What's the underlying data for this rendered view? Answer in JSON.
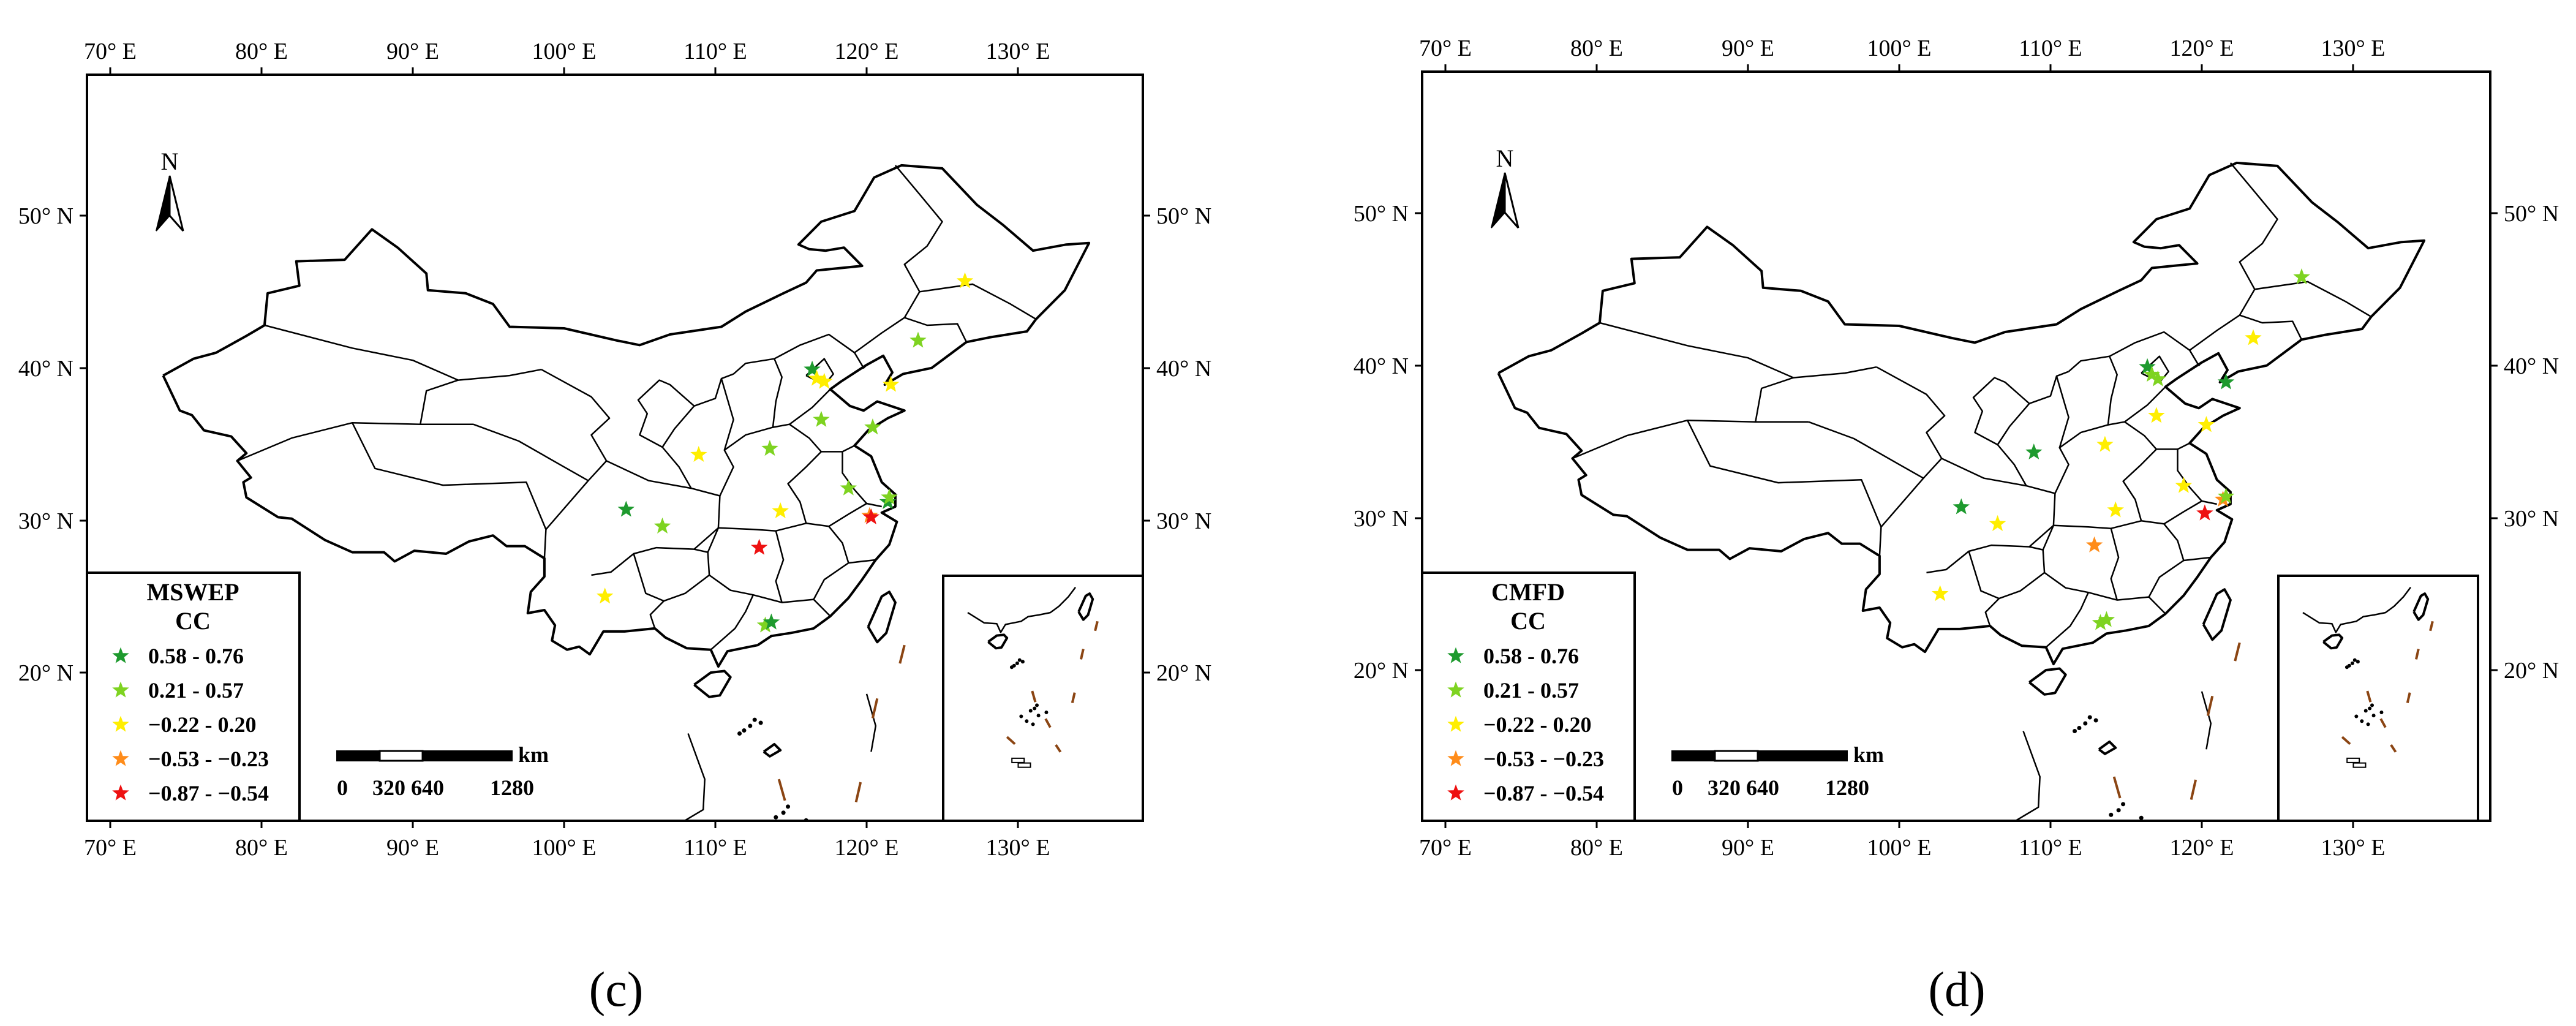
{
  "colors": {
    "dark_green": "#1e9a2e",
    "light_green": "#7ed321",
    "yellow": "#ffee00",
    "orange": "#ff8c1a",
    "red": "#ee1111",
    "nine_dash": "#8B4513"
  },
  "axes": {
    "lon_ticks": [
      "70° E",
      "80° E",
      "90° E",
      "100° E",
      "110° E",
      "120° E",
      "130° E"
    ],
    "lat_ticks": [
      "20° N",
      "30° N",
      "40° N",
      "50° N"
    ]
  },
  "north_label": "N",
  "scale_bar": {
    "labels": [
      "0",
      "320",
      "640",
      "1280"
    ],
    "unit": "km"
  },
  "panels": [
    {
      "id": "c",
      "panel_label": "(c)",
      "legend": {
        "title": "MSWEP",
        "subtitle": "CC",
        "classes": [
          {
            "label": "0.58 - 0.76",
            "color": "#1e9a2e"
          },
          {
            "label": "0.21 - 0.57",
            "color": "#7ed321"
          },
          {
            "label": "−0.22 - 0.20",
            "color": "#ffee00"
          },
          {
            "label": "−0.53 - −0.23",
            "color": "#ff8c1a"
          },
          {
            "label": "−0.87 - −0.54",
            "color": "#ee1111"
          }
        ]
      },
      "stations": [
        {
          "lon": 126.5,
          "lat": 45.7,
          "cls": 2
        },
        {
          "lon": 123.4,
          "lat": 41.8,
          "cls": 1
        },
        {
          "lon": 116.4,
          "lat": 39.9,
          "cls": 0
        },
        {
          "lon": 116.7,
          "lat": 39.3,
          "cls": 2
        },
        {
          "lon": 117.2,
          "lat": 39.1,
          "cls": 2
        },
        {
          "lon": 121.6,
          "lat": 38.9,
          "cls": 2
        },
        {
          "lon": 117.0,
          "lat": 36.6,
          "cls": 1
        },
        {
          "lon": 120.4,
          "lat": 36.1,
          "cls": 1
        },
        {
          "lon": 113.6,
          "lat": 34.7,
          "cls": 1
        },
        {
          "lon": 108.9,
          "lat": 34.3,
          "cls": 2
        },
        {
          "lon": 118.8,
          "lat": 32.1,
          "cls": 1
        },
        {
          "lon": 121.4,
          "lat": 31.2,
          "cls": 0
        },
        {
          "lon": 121.5,
          "lat": 31.5,
          "cls": 1
        },
        {
          "lon": 114.3,
          "lat": 30.6,
          "cls": 2
        },
        {
          "lon": 120.2,
          "lat": 30.3,
          "cls": 3
        },
        {
          "lon": 120.3,
          "lat": 30.2,
          "cls": 4
        },
        {
          "lon": 104.1,
          "lat": 30.7,
          "cls": 0
        },
        {
          "lon": 106.5,
          "lat": 29.6,
          "cls": 1
        },
        {
          "lon": 112.9,
          "lat": 28.2,
          "cls": 4
        },
        {
          "lon": 102.7,
          "lat": 25.0,
          "cls": 2
        },
        {
          "lon": 113.3,
          "lat": 23.1,
          "cls": 1
        },
        {
          "lon": 113.7,
          "lat": 23.3,
          "cls": 0
        }
      ]
    },
    {
      "id": "d",
      "panel_label": "(d)",
      "legend": {
        "title": "CMFD",
        "subtitle": "CC",
        "classes": [
          {
            "label": "0.58 - 0.76",
            "color": "#1e9a2e"
          },
          {
            "label": "0.21 - 0.57",
            "color": "#7ed321"
          },
          {
            "label": "−0.22 - 0.20",
            "color": "#ffee00"
          },
          {
            "label": "−0.53 - −0.23",
            "color": "#ff8c1a"
          },
          {
            "label": "−0.87 - −0.54",
            "color": "#ee1111"
          }
        ]
      },
      "stations": [
        {
          "lon": 126.6,
          "lat": 45.8,
          "cls": 1
        },
        {
          "lon": 123.4,
          "lat": 41.8,
          "cls": 2
        },
        {
          "lon": 116.4,
          "lat": 39.9,
          "cls": 0
        },
        {
          "lon": 116.7,
          "lat": 39.4,
          "cls": 1
        },
        {
          "lon": 117.1,
          "lat": 39.1,
          "cls": 1
        },
        {
          "lon": 121.6,
          "lat": 38.9,
          "cls": 0
        },
        {
          "lon": 117.0,
          "lat": 36.7,
          "cls": 2
        },
        {
          "lon": 120.3,
          "lat": 36.1,
          "cls": 2
        },
        {
          "lon": 113.6,
          "lat": 34.8,
          "cls": 2
        },
        {
          "lon": 108.9,
          "lat": 34.3,
          "cls": 0
        },
        {
          "lon": 118.8,
          "lat": 32.1,
          "cls": 2
        },
        {
          "lon": 121.4,
          "lat": 31.2,
          "cls": 3
        },
        {
          "lon": 121.6,
          "lat": 31.4,
          "cls": 1
        },
        {
          "lon": 114.3,
          "lat": 30.5,
          "cls": 2
        },
        {
          "lon": 120.2,
          "lat": 30.3,
          "cls": 4
        },
        {
          "lon": 104.1,
          "lat": 30.7,
          "cls": 0
        },
        {
          "lon": 106.5,
          "lat": 29.6,
          "cls": 2
        },
        {
          "lon": 112.9,
          "lat": 28.2,
          "cls": 3
        },
        {
          "lon": 102.7,
          "lat": 25.0,
          "cls": 2
        },
        {
          "lon": 113.3,
          "lat": 23.1,
          "cls": 1
        },
        {
          "lon": 113.7,
          "lat": 23.3,
          "cls": 1
        }
      ]
    }
  ]
}
